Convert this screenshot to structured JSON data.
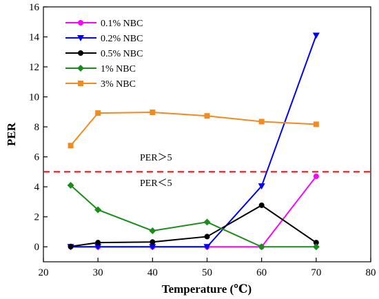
{
  "chart_data": {
    "type": "line",
    "xlabel": "Temperature (℃)",
    "ylabel": "PER",
    "xlim": [
      20,
      80
    ],
    "ylim": [
      -1,
      16
    ],
    "xticks": [
      20,
      30,
      40,
      50,
      60,
      70,
      80
    ],
    "yticks": [
      0,
      2,
      4,
      6,
      8,
      10,
      12,
      14,
      16
    ],
    "grid": false,
    "legend_position": "top-left",
    "series": [
      {
        "name": "0.1% NBC",
        "color": "#ff00ff",
        "marker": "circle",
        "x": [
          25,
          30,
          40,
          50,
          60,
          70
        ],
        "y": [
          0,
          0,
          0,
          0,
          0,
          4.7
        ]
      },
      {
        "name": "0.2% NBC",
        "color": "#0000ff",
        "marker": "triangle-down",
        "x": [
          25,
          30,
          40,
          50,
          60,
          70
        ],
        "y": [
          0,
          0,
          0,
          0,
          4.05,
          14.1
        ]
      },
      {
        "name": "0.5% NBC",
        "color": "#000000",
        "marker": "circle",
        "x": [
          25,
          30,
          40,
          50,
          60,
          70
        ],
        "y": [
          0.02,
          0.28,
          0.32,
          0.68,
          2.77,
          0.28
        ]
      },
      {
        "name": "1% NBC",
        "color": "#1a8c1a",
        "marker": "diamond",
        "x": [
          25,
          30,
          40,
          50,
          60,
          70
        ],
        "y": [
          4.1,
          2.47,
          1.07,
          1.65,
          0,
          0
        ]
      },
      {
        "name": "3% NBC",
        "color": "#f28a1e",
        "marker": "square",
        "x": [
          25,
          30,
          40,
          50,
          60,
          70
        ],
        "y": [
          6.75,
          8.92,
          8.97,
          8.73,
          8.35,
          8.17
        ]
      }
    ],
    "reference_line": {
      "y": 5,
      "color": "#ff0000",
      "style": "dashed"
    },
    "annotations": [
      "PER＞5",
      "PER＜5"
    ]
  }
}
